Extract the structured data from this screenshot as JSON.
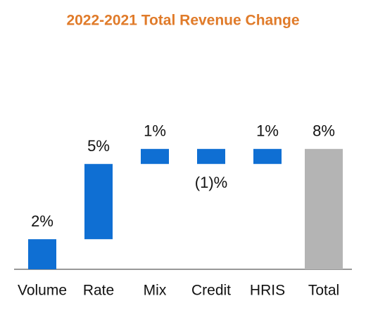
{
  "chart_data": {
    "type": "waterfall",
    "title": "2022-2021 Total Revenue Change",
    "categories": [
      "Volume",
      "Rate",
      "Mix",
      "Credit",
      "HRIS",
      "Total"
    ],
    "values": [
      2,
      5,
      1,
      -1,
      1,
      8
    ],
    "value_labels": [
      "2%",
      "5%",
      "1%",
      "(1)%",
      "1%",
      "8%"
    ],
    "is_total": [
      false,
      false,
      false,
      false,
      false,
      true
    ],
    "color": "#0f6fd3",
    "total_color": "#b4b4b4",
    "ylim": [
      0,
      10
    ]
  }
}
